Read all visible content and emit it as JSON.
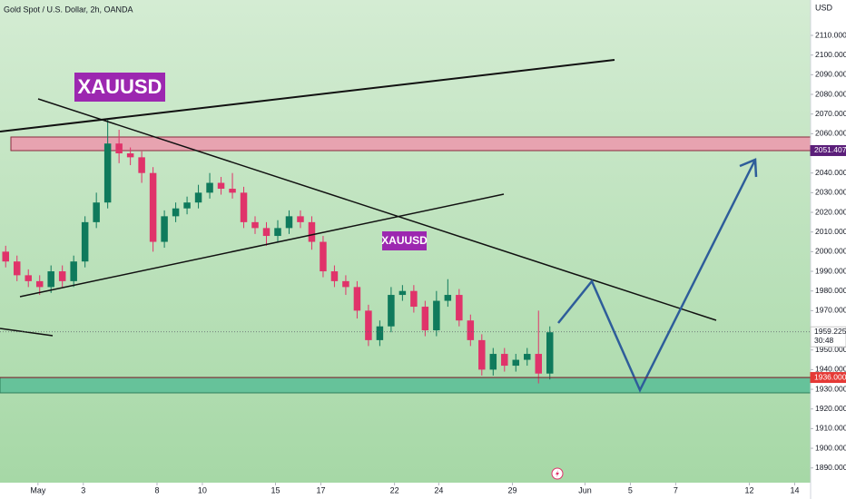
{
  "chart_data": {
    "type": "candlestick",
    "title": "Gold Spot / U.S. Dollar, 2h, OANDA",
    "currency": "USD",
    "annotations": [
      "XAUUSD",
      "XAUUSD"
    ],
    "up_color": "#0f7a5c",
    "down_color": "#e0336a",
    "x": [
      1,
      3,
      5,
      7,
      9,
      11,
      13,
      15,
      17,
      19,
      21,
      23,
      25,
      27,
      29,
      31,
      33,
      35,
      37,
      39,
      41,
      43,
      45,
      47,
      49,
      51,
      53,
      55,
      57,
      59,
      61,
      63,
      65,
      67,
      69,
      71,
      73,
      75,
      77,
      79,
      81,
      83,
      85,
      87,
      89,
      91,
      93,
      95,
      97
    ],
    "open": [
      2000,
      1995,
      1988,
      1985,
      1982,
      1990,
      1985,
      1995,
      2015,
      2025,
      2055,
      2050,
      2048,
      2040,
      2005,
      2018,
      2022,
      2025,
      2030,
      2035,
      2032,
      2030,
      2015,
      2012,
      2008,
      2012,
      2018,
      2015,
      2005,
      1990,
      1985,
      1982,
      1970,
      1955,
      1962,
      1978,
      1980,
      1972,
      1960,
      1975,
      1978,
      1965,
      1955,
      1940,
      1948,
      1942,
      1945,
      1948,
      1938
    ],
    "high": [
      2003,
      1998,
      1991,
      1988,
      1993,
      1993,
      1998,
      2018,
      2030,
      2067,
      2062,
      2053,
      2051,
      2043,
      2021,
      2025,
      2028,
      2034,
      2040,
      2038,
      2040,
      2033,
      2018,
      2015,
      2016,
      2021,
      2021,
      2018,
      2008,
      1993,
      1988,
      1985,
      1973,
      1965,
      1982,
      1983,
      1983,
      1975,
      1980,
      1986,
      1981,
      1968,
      1958,
      1951,
      1951,
      1948,
      1951,
      1970,
      1962
    ],
    "low": [
      1992,
      1985,
      1982,
      1978,
      1979,
      1982,
      1982,
      1992,
      2012,
      2022,
      2045,
      2044,
      2035,
      2000,
      2002,
      2015,
      2019,
      2022,
      2027,
      2029,
      2027,
      2012,
      2009,
      2003,
      2005,
      2009,
      2012,
      2001,
      1987,
      1982,
      1978,
      1966,
      1952,
      1952,
      1959,
      1975,
      1969,
      1957,
      1957,
      1972,
      1962,
      1952,
      1937,
      1937,
      1939,
      1939,
      1942,
      1933,
      1935
    ],
    "close": [
      1995,
      1988,
      1985,
      1982,
      1990,
      1985,
      1995,
      2015,
      2025,
      2055,
      2050,
      2048,
      2040,
      2005,
      2018,
      2022,
      2025,
      2030,
      2035,
      2032,
      2030,
      2015,
      2012,
      2008,
      2012,
      2018,
      2015,
      2005,
      1990,
      1985,
      1982,
      1970,
      1955,
      1962,
      1978,
      1980,
      1972,
      1960,
      1975,
      1978,
      1965,
      1955,
      1940,
      1948,
      1942,
      1945,
      1948,
      1938,
      1959
    ],
    "xlim": [
      0,
      143
    ],
    "xticks": [
      {
        "value": 6.7,
        "label": "May"
      },
      {
        "value": 14.7,
        "label": "3"
      },
      {
        "value": 27.7,
        "label": "8"
      },
      {
        "value": 35.7,
        "label": "10"
      },
      {
        "value": 48.6,
        "label": "15"
      },
      {
        "value": 56.6,
        "label": "17"
      },
      {
        "value": 69.6,
        "label": "22"
      },
      {
        "value": 77.4,
        "label": "24"
      },
      {
        "value": 90.4,
        "label": "29"
      },
      {
        "value": 103.2,
        "label": "Jun"
      },
      {
        "value": 111.2,
        "label": "5"
      },
      {
        "value": 119.2,
        "label": "7"
      },
      {
        "value": 132.2,
        "label": "12"
      },
      {
        "value": 140.2,
        "label": "14"
      }
    ],
    "ylim": [
      1882.5,
      2128
    ],
    "yticks": [
      {
        "value": 1890,
        "label": "1890.000"
      },
      {
        "value": 1900,
        "label": "1900.000"
      },
      {
        "value": 1910,
        "label": "1910.000"
      },
      {
        "value": 1920,
        "label": "1920.000"
      },
      {
        "value": 1930,
        "label": "1930.000"
      },
      {
        "value": 1940,
        "label": "1940.000"
      },
      {
        "value": 1950,
        "label": "1950.000"
      },
      {
        "value": 1970,
        "label": "1970.000"
      },
      {
        "value": 1980,
        "label": "1980.000"
      },
      {
        "value": 1990,
        "label": "1990.000"
      },
      {
        "value": 2000,
        "label": "2000.000"
      },
      {
        "value": 2010,
        "label": "2010.000"
      },
      {
        "value": 2020,
        "label": "2020.000"
      },
      {
        "value": 2030,
        "label": "2030.000"
      },
      {
        "value": 2040,
        "label": "2040.000"
      },
      {
        "value": 2060,
        "label": "2060.000"
      },
      {
        "value": 2070,
        "label": "2070.000"
      },
      {
        "value": 2080,
        "label": "2080.000"
      },
      {
        "value": 2090,
        "label": "2090.000"
      },
      {
        "value": 2100,
        "label": "2100.000"
      },
      {
        "value": 2110,
        "label": "2110.000"
      }
    ],
    "price_labels": [
      {
        "value": 2051.407,
        "label": "2051.407",
        "color": "#5b1f7a"
      },
      {
        "value": 1959.225,
        "label": "1959.225",
        "color": "#ffffff"
      },
      {
        "value": 1936,
        "label": "1936.000",
        "color": "#e53935"
      }
    ],
    "countdown": "30:48"
  }
}
